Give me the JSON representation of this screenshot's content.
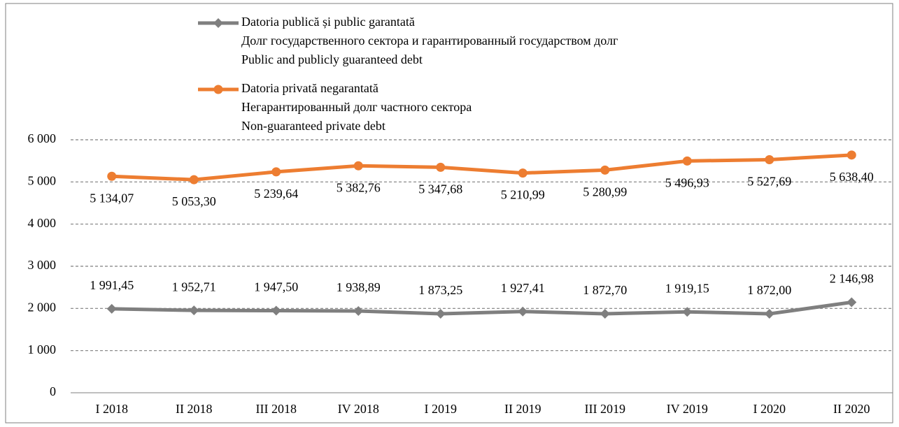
{
  "chart_data": {
    "type": "line",
    "categories": [
      "I 2018",
      "II 2018",
      "III 2018",
      "IV 2018",
      "I 2019",
      "II 2019",
      "III 2019",
      "IV 2019",
      "I 2020",
      "II 2020"
    ],
    "series": [
      {
        "name": [
          "Datoria publică și public garantată",
          "Долг государственного сектора и гарантированный государством долг",
          "Public and publicly guaranteed debt"
        ],
        "color": "#7f7f7f",
        "marker": "diamond",
        "values": [
          1991.45,
          1952.71,
          1947.5,
          1938.89,
          1873.25,
          1927.41,
          1872.7,
          1919.15,
          1872.0,
          2146.98
        ],
        "value_labels": [
          "1 991,45",
          "1 952,71",
          "1 947,50",
          "1 938,89",
          "1 873,25",
          "1 927,41",
          "1 872,70",
          "1 919,15",
          "1 872,00",
          "2 146,98"
        ]
      },
      {
        "name": [
          "Datoria privată negarantată",
          "Негарантированный долг частного сектора",
          "Non-guaranteed private debt"
        ],
        "color": "#ed7d31",
        "marker": "circle",
        "values": [
          5134.07,
          5053.3,
          5239.64,
          5382.76,
          5347.68,
          5210.99,
          5280.99,
          5496.93,
          5527.69,
          5638.4
        ],
        "value_labels": [
          "5 134,07",
          "5 053,30",
          "5 239,64",
          "5 382,76",
          "5 347,68",
          "5 210,99",
          "5 280,99",
          "5 496,93",
          "5 527,69",
          "5 638,40"
        ]
      }
    ],
    "ylim": [
      0,
      6000
    ],
    "yticks": [
      0,
      {
        "value": 1000,
        "label": "1 000"
      },
      {
        "value": 2000,
        "label": "2 000"
      },
      {
        "value": 3000,
        "label": "3 000"
      },
      {
        "value": 4000,
        "label": "4 000"
      },
      {
        "value": 5000,
        "label": "5 000"
      },
      {
        "value": 6000,
        "label": "6 000"
      }
    ],
    "grid": true,
    "legend": "top"
  }
}
